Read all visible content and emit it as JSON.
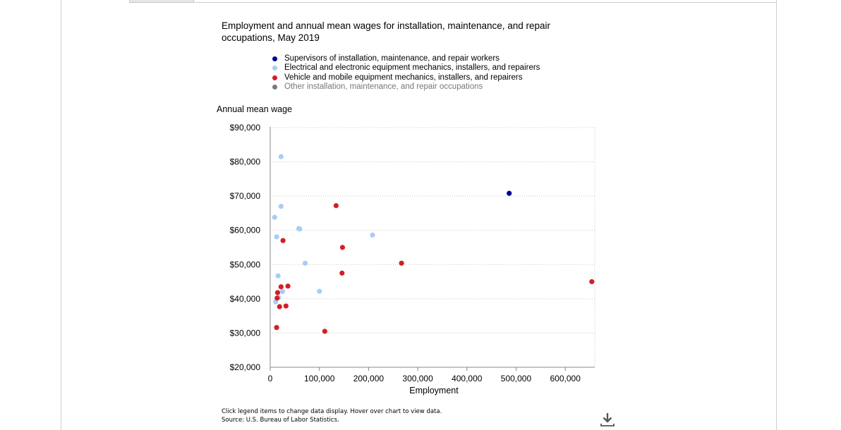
{
  "chart_data": {
    "type": "scatter",
    "title": "Employment and annual mean wages for installation, maintenance, and repair occupations, May 2019",
    "xlabel": "Employment",
    "ylabel": "Annual mean wage",
    "xlim": [
      0,
      660000
    ],
    "ylim": [
      20000,
      90000
    ],
    "x_ticks": [
      0,
      100000,
      200000,
      300000,
      400000,
      500000,
      600000
    ],
    "y_ticks": [
      20000,
      30000,
      40000,
      50000,
      60000,
      70000,
      80000,
      90000
    ],
    "x_tick_labels": [
      "0",
      "100,000",
      "200,000",
      "300,000",
      "400,000",
      "500,000",
      "600,000"
    ],
    "y_tick_labels": [
      "$20,000",
      "$30,000",
      "$40,000",
      "$50,000",
      "$60,000",
      "$70,000",
      "$80,000",
      "$90,000"
    ],
    "grid": true,
    "legend_position": "top",
    "series": [
      {
        "name": "Supervisors of installation, maintenance, and repair workers",
        "color": "#00008b",
        "active": true,
        "points": [
          [
            486000,
            70800
          ]
        ]
      },
      {
        "name": "Electrical and electronic equipment mechanics, installers, and repairers",
        "color": "#a9cdf5",
        "active": true,
        "points": [
          [
            22000,
            81500
          ],
          [
            22000,
            67000
          ],
          [
            9000,
            63800
          ],
          [
            58000,
            60500
          ],
          [
            60000,
            60400
          ],
          [
            208000,
            58600
          ],
          [
            13000,
            58100
          ],
          [
            71000,
            50400
          ],
          [
            16000,
            46700
          ],
          [
            100000,
            42200
          ],
          [
            25000,
            42100
          ],
          [
            11000,
            39100
          ],
          [
            17000,
            40400
          ]
        ]
      },
      {
        "name": "Vehicle and mobile equipment mechanics, installers, and repairers",
        "color": "#d11f26",
        "active": true,
        "points": [
          [
            134000,
            67200
          ],
          [
            26000,
            57000
          ],
          [
            147000,
            55000
          ],
          [
            267000,
            50400
          ],
          [
            146000,
            47500
          ],
          [
            654000,
            45000
          ],
          [
            36000,
            43700
          ],
          [
            22000,
            43500
          ],
          [
            15000,
            41800
          ],
          [
            14000,
            40200
          ],
          [
            19000,
            37700
          ],
          [
            32000,
            37900
          ],
          [
            13000,
            31600
          ],
          [
            111000,
            30500
          ]
        ]
      },
      {
        "name": "Other installation, maintenance, and repair occupations",
        "color": "#7a7a7a",
        "active": false,
        "points": []
      }
    ]
  },
  "footer": {
    "note": "Click legend items to change data display. Hover over chart to view data.",
    "source": "Source: U.S. Bureau of Labor Statistics."
  }
}
